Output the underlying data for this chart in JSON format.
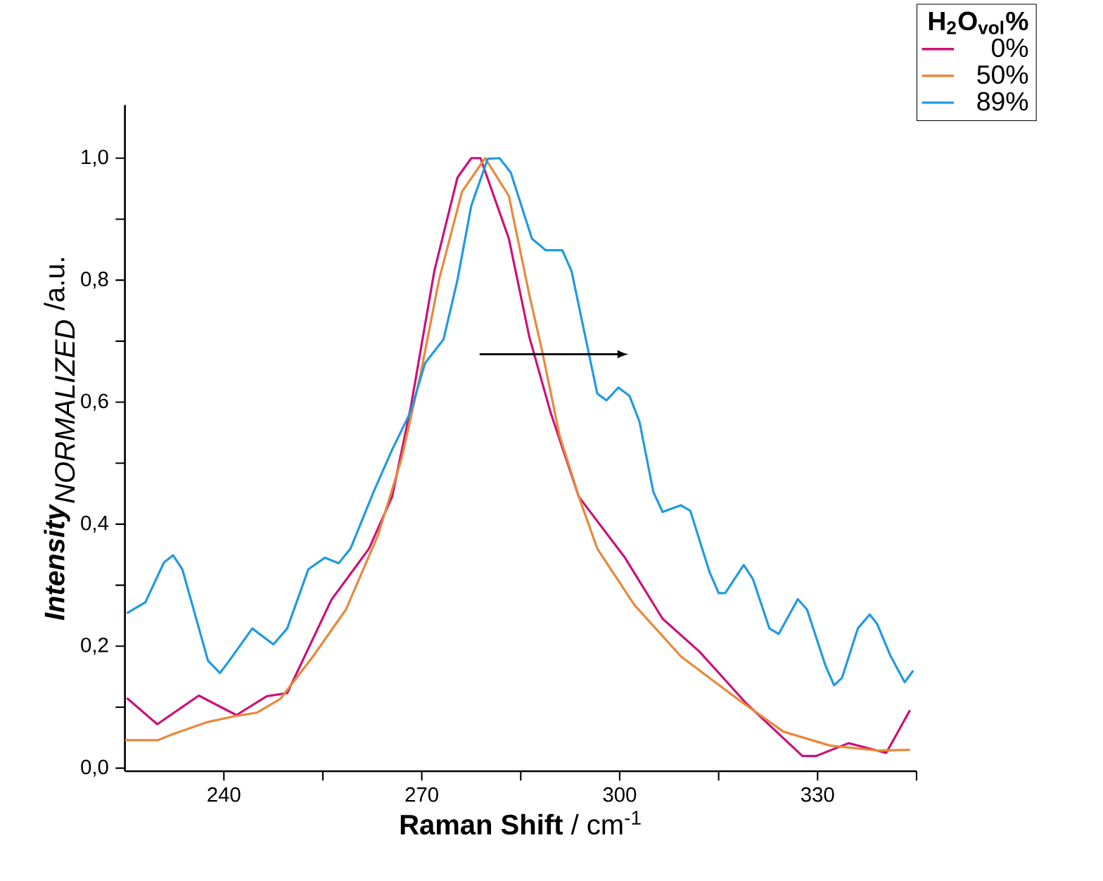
{
  "chart_data": {
    "type": "line",
    "xlabel": "**Raman Shift** / cm$^{-1}$",
    "ylabel": "\\textbf{\\textit{Intensity}}_{\\textit{NORMALIZED}}\\ \\textrm{/a.u.}",
    "legend_title": "H$_{2}$O$_{vol}$%",
    "xlim": [
      225,
      345
    ],
    "ylim": [
      -0.005,
      1.087
    ],
    "xticks": [
      240,
      {
        "value": 255,
        "label": null
      },
      270,
      {
        "value": 285,
        "label": null
      },
      300,
      {
        "value": 315,
        "label": null
      },
      330,
      {
        "value": 345,
        "label": null
      }
    ],
    "yticks": [
      {
        "value": 0,
        "label": "0,0"
      },
      {
        "value": 0.1,
        "label": null
      },
      {
        "value": 0.2,
        "label": "0,2"
      },
      {
        "value": 0.3,
        "label": null
      },
      {
        "value": 0.4,
        "label": "0,4"
      },
      {
        "value": 0.5,
        "label": null
      },
      {
        "value": 0.6,
        "label": "0,6"
      },
      {
        "value": 0.7,
        "label": null
      },
      {
        "value": 0.8,
        "label": "0,8"
      },
      {
        "value": 0.9,
        "label": null
      },
      {
        "value": 1.0,
        "label": "1,0"
      }
    ],
    "grid": false,
    "legend": "top right",
    "marker": "none",
    "line_style": "solid",
    "series": [
      {
        "name": "0%",
        "color": "#cc1177",
        "x": [
          225.3,
          229.9,
          236.2,
          241.9,
          246.5,
          249.6,
          256.3,
          262,
          265.5,
          268.3,
          271.9,
          275.4,
          277.5,
          278.9,
          283.2,
          286.3,
          289.5,
          293.8,
          300.8,
          306.5,
          312.1,
          319.2,
          327.7,
          329.8,
          334.7,
          340.4,
          344
        ],
        "values": [
          0.115,
          0.072,
          0.119,
          0.087,
          0.118,
          0.123,
          0.276,
          0.36,
          0.445,
          0.59,
          0.815,
          0.968,
          1.0,
          1.0,
          0.868,
          0.707,
          0.584,
          0.445,
          0.345,
          0.245,
          0.191,
          0.106,
          0.02,
          0.02,
          0.041,
          0.025,
          0.095
        ]
      },
      {
        "name": "50%",
        "color": "#e8883a",
        "x": [
          225,
          230,
          232.3,
          237.3,
          241.5,
          245,
          248.6,
          253.5,
          258.5,
          263.4,
          266.9,
          269.8,
          272.6,
          276.1,
          279.6,
          283.2,
          286.3,
          288.1,
          290.9,
          293.8,
          296.6,
          302.2,
          309.3,
          317.8,
          324.8,
          331.9,
          339,
          344
        ],
        "values": [
          0.046,
          0.046,
          0.056,
          0.075,
          0.085,
          0.091,
          0.114,
          0.183,
          0.26,
          0.383,
          0.506,
          0.645,
          0.8,
          0.945,
          1.0,
          0.938,
          0.776,
          0.691,
          0.545,
          0.445,
          0.36,
          0.268,
          0.183,
          0.114,
          0.06,
          0.037,
          0.029,
          0.03
        ]
      },
      {
        "name": "89%",
        "color": "#1f9ae0",
        "x": [
          225.3,
          228.1,
          230.9,
          232.3,
          233.7,
          237.6,
          239.4,
          240.8,
          244.3,
          247.5,
          249.6,
          252.8,
          255.3,
          257.4,
          259.2,
          262.7,
          265.5,
          268.3,
          270.5,
          273.3,
          275.4,
          277.5,
          280,
          281.8,
          283.5,
          286.7,
          288.8,
          291.3,
          292.7,
          296.6,
          298,
          299.8,
          301.5,
          303,
          305.1,
          306.5,
          309.3,
          310.7,
          313.6,
          315,
          316,
          318.8,
          320.2,
          322.7,
          324.1,
          327,
          328.4,
          331.2,
          332.5,
          333.7,
          336.1,
          337.9,
          339,
          341.1,
          343.2,
          344.5
        ],
        "values": [
          0.254,
          0.272,
          0.337,
          0.349,
          0.326,
          0.176,
          0.156,
          0.176,
          0.229,
          0.203,
          0.229,
          0.326,
          0.345,
          0.336,
          0.36,
          0.453,
          0.522,
          0.584,
          0.664,
          0.703,
          0.8,
          0.922,
          0.999,
          1.0,
          0.976,
          0.868,
          0.849,
          0.849,
          0.815,
          0.614,
          0.603,
          0.624,
          0.61,
          0.568,
          0.453,
          0.42,
          0.431,
          0.422,
          0.322,
          0.287,
          0.287,
          0.333,
          0.31,
          0.229,
          0.22,
          0.277,
          0.26,
          0.168,
          0.136,
          0.148,
          0.229,
          0.252,
          0.237,
          0.183,
          0.141,
          0.16
        ]
      }
    ]
  }
}
